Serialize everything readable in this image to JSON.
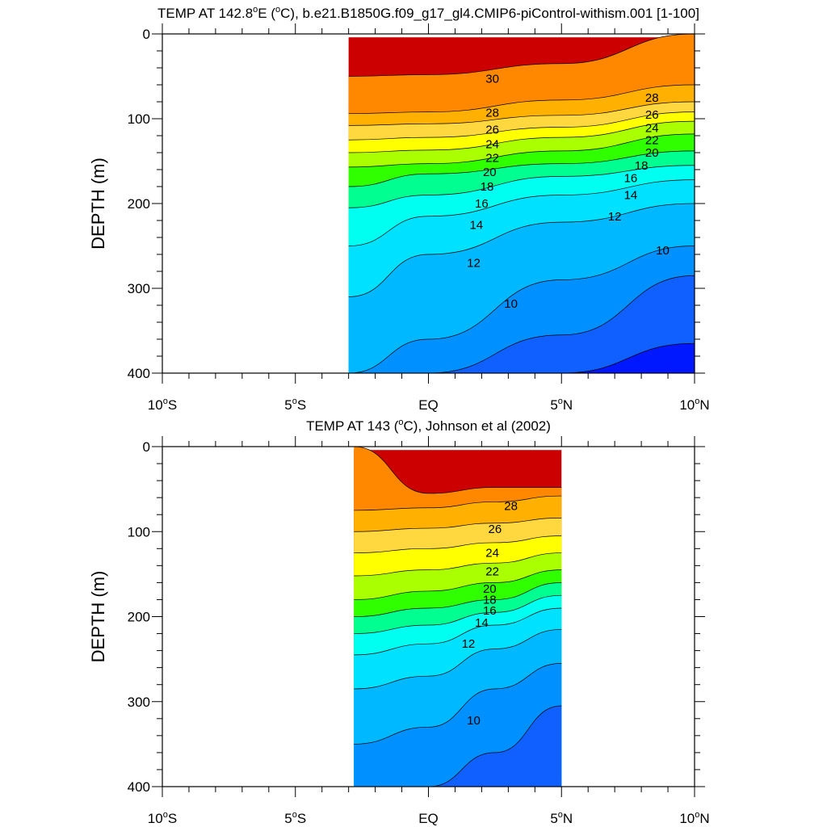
{
  "chart_data": [
    {
      "type": "contour",
      "title_prefix": "TEMP AT 142.8",
      "title_suffix": "E (",
      "title_unit_sup": "o",
      "title_unit": "C), b.e21.B1850G.f09_g17_gl4.CMIP6-piControl-withism.001 [1-100]",
      "ylabel": "DEPTH (m)",
      "xlim": [
        -10,
        10
      ],
      "ylim": [
        0,
        400
      ],
      "data_xrange": [
        -3,
        10
      ],
      "y_ticks": [
        "0",
        "100",
        "200",
        "300",
        "400"
      ],
      "x_ticks": [
        "10",
        "5",
        "EQ",
        "5",
        "10"
      ],
      "x_tick_suffixes": [
        "S",
        "S",
        "",
        "N",
        "N"
      ],
      "isotherms": [
        {
          "level": 30,
          "depth": [
            50,
            48,
            35,
            0
          ]
        },
        {
          "level": 28,
          "depth": [
            94,
            92,
            78,
            60
          ]
        },
        {
          "level": 26,
          "depth": [
            108,
            106,
            96,
            80
          ]
        },
        {
          "level": 24,
          "depth": [
            125,
            122,
            110,
            92
          ]
        },
        {
          "level": 22,
          "depth": [
            140,
            137,
            122,
            103
          ]
        },
        {
          "level": 20,
          "depth": [
            157,
            153,
            138,
            118
          ]
        },
        {
          "level": 18,
          "depth": [
            180,
            165,
            153,
            138
          ]
        },
        {
          "level": 16,
          "depth": [
            205,
            190,
            168,
            155
          ]
        },
        {
          "level": 14,
          "depth": [
            250,
            215,
            190,
            172
          ]
        },
        {
          "level": 12,
          "depth": [
            310,
            260,
            222,
            200
          ]
        },
        {
          "level": 10,
          "depth": [
            400,
            360,
            290,
            250
          ]
        },
        {
          "level": 8,
          "depth": [
            400,
            400,
            355,
            285
          ]
        },
        {
          "level": 6,
          "depth": [
            400,
            400,
            400,
            365
          ]
        }
      ],
      "isotherm_x": [
        -3,
        0,
        5,
        10
      ],
      "contour_labels": [
        {
          "text": "30",
          "x": 2.4,
          "depth": 53
        },
        {
          "text": "28",
          "x": 2.4,
          "depth": 93
        },
        {
          "text": "26",
          "x": 2.4,
          "depth": 113
        },
        {
          "text": "24",
          "x": 2.4,
          "depth": 130
        },
        {
          "text": "22",
          "x": 2.4,
          "depth": 146
        },
        {
          "text": "20",
          "x": 2.3,
          "depth": 163
        },
        {
          "text": "18",
          "x": 2.2,
          "depth": 180
        },
        {
          "text": "16",
          "x": 2.0,
          "depth": 200
        },
        {
          "text": "14",
          "x": 1.8,
          "depth": 225
        },
        {
          "text": "12",
          "x": 1.7,
          "depth": 270
        },
        {
          "text": "10",
          "x": 3.1,
          "depth": 318
        },
        {
          "text": "28",
          "x": 8.4,
          "depth": 75
        },
        {
          "text": "26",
          "x": 8.4,
          "depth": 95
        },
        {
          "text": "24",
          "x": 8.4,
          "depth": 111
        },
        {
          "text": "22",
          "x": 8.4,
          "depth": 125
        },
        {
          "text": "20",
          "x": 8.4,
          "depth": 140
        },
        {
          "text": "18",
          "x": 8.0,
          "depth": 155
        },
        {
          "text": "16",
          "x": 7.6,
          "depth": 170
        },
        {
          "text": "14",
          "x": 7.6,
          "depth": 190
        },
        {
          "text": "12",
          "x": 7.0,
          "depth": 215
        },
        {
          "text": "10",
          "x": 8.8,
          "depth": 255
        }
      ]
    },
    {
      "type": "contour",
      "title_prefix": "TEMP AT 143 (",
      "title_suffix": "",
      "title_unit_sup": "o",
      "title_unit": "C), Johnson et al (2002)",
      "ylabel": "DEPTH (m)",
      "xlim": [
        -10,
        10
      ],
      "ylim": [
        0,
        400
      ],
      "data_xrange": [
        -2.8,
        5
      ],
      "y_ticks": [
        "0",
        "100",
        "200",
        "300",
        "400"
      ],
      "x_ticks": [
        "10",
        "5",
        "EQ",
        "5",
        "10"
      ],
      "x_tick_suffixes": [
        "S",
        "S",
        "",
        "N",
        "N"
      ],
      "isotherms": [
        {
          "level": 30,
          "depth": [
            0,
            55,
            48,
            48
          ]
        },
        {
          "level": 28,
          "depth": [
            75,
            72,
            65,
            58
          ]
        },
        {
          "level": 26,
          "depth": [
            100,
            96,
            90,
            84
          ]
        },
        {
          "level": 24,
          "depth": [
            125,
            120,
            113,
            105
          ]
        },
        {
          "level": 22,
          "depth": [
            152,
            145,
            137,
            125
          ]
        },
        {
          "level": 20,
          "depth": [
            180,
            170,
            160,
            145
          ]
        },
        {
          "level": 18,
          "depth": [
            200,
            190,
            180,
            160
          ]
        },
        {
          "level": 16,
          "depth": [
            220,
            210,
            195,
            175
          ]
        },
        {
          "level": 14,
          "depth": [
            245,
            232,
            210,
            190
          ]
        },
        {
          "level": 12,
          "depth": [
            285,
            270,
            238,
            215
          ]
        },
        {
          "level": 10,
          "depth": [
            350,
            330,
            285,
            255
          ]
        },
        {
          "level": 8,
          "depth": [
            400,
            400,
            360,
            305
          ]
        }
      ],
      "isotherm_x": [
        -2.8,
        0,
        2.5,
        5
      ],
      "contour_labels": [
        {
          "text": "28",
          "x": 3.1,
          "depth": 70
        },
        {
          "text": "26",
          "x": 2.5,
          "depth": 97
        },
        {
          "text": "24",
          "x": 2.4,
          "depth": 125
        },
        {
          "text": "22",
          "x": 2.4,
          "depth": 147
        },
        {
          "text": "20",
          "x": 2.3,
          "depth": 167
        },
        {
          "text": "18",
          "x": 2.3,
          "depth": 180
        },
        {
          "text": "16",
          "x": 2.3,
          "depth": 193
        },
        {
          "text": "14",
          "x": 2.0,
          "depth": 207
        },
        {
          "text": "12",
          "x": 1.5,
          "depth": 232
        },
        {
          "text": "10",
          "x": 1.7,
          "depth": 322
        }
      ]
    }
  ],
  "colors": {
    "palette": [
      "#5a00e0",
      "#0018ff",
      "#1060ff",
      "#0090ff",
      "#00b8ff",
      "#00e0ff",
      "#00fff0",
      "#00ff90",
      "#30ff00",
      "#aaff00",
      "#ffff00",
      "#ffd840",
      "#ffb000",
      "#ff8800",
      "#ff5000",
      "#ff0000",
      "#cc0000"
    ],
    "palette_levels": [
      0,
      6,
      8,
      10,
      12,
      14,
      16,
      18,
      20,
      22,
      24,
      26,
      28,
      30,
      32,
      34,
      36
    ]
  }
}
